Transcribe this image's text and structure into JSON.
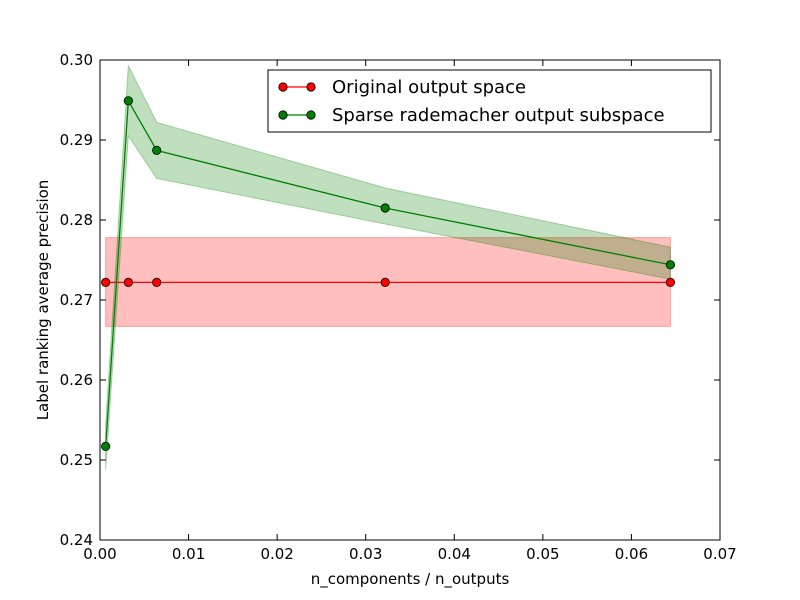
{
  "chart_data": {
    "type": "line",
    "title": "",
    "xlabel": "n_components / n_outputs",
    "ylabel": "Label ranking average precision",
    "xlim": [
      0.0,
      0.07
    ],
    "ylim": [
      0.24,
      0.3
    ],
    "xticks": [
      0.0,
      0.01,
      0.02,
      0.03,
      0.04,
      0.05,
      0.06,
      0.07
    ],
    "yticks": [
      0.24,
      0.25,
      0.26,
      0.27,
      0.28,
      0.29,
      0.3
    ],
    "xtick_labels": [
      "0.00",
      "0.01",
      "0.02",
      "0.03",
      "0.04",
      "0.05",
      "0.06",
      "0.07"
    ],
    "ytick_labels": [
      "0.24",
      "0.25",
      "0.26",
      "0.27",
      "0.28",
      "0.29",
      "0.30"
    ],
    "grid": false,
    "legend_position": "top-right",
    "series": [
      {
        "name": "Original output space",
        "color": "#ff0000",
        "band_color": "#ff0000",
        "x": [
          0.00064,
          0.0032,
          0.0064,
          0.0322,
          0.0644
        ],
        "y": [
          0.2722,
          0.2722,
          0.2722,
          0.2722,
          0.2722
        ],
        "lower": [
          0.2667,
          0.2667,
          0.2667,
          0.2667,
          0.2667
        ],
        "upper": [
          0.2778,
          0.2778,
          0.2778,
          0.2778,
          0.2778
        ]
      },
      {
        "name": "Sparse rademacher output subspace",
        "color": "#008000",
        "band_color": "#008000",
        "x": [
          0.00064,
          0.0032,
          0.0064,
          0.0322,
          0.0644
        ],
        "y": [
          0.2517,
          0.2949,
          0.2887,
          0.2815,
          0.2744
        ],
        "lower": [
          0.2488,
          0.2905,
          0.2852,
          0.2795,
          0.2726
        ],
        "upper": [
          0.2545,
          0.2993,
          0.2922,
          0.284,
          0.2766
        ]
      }
    ]
  }
}
